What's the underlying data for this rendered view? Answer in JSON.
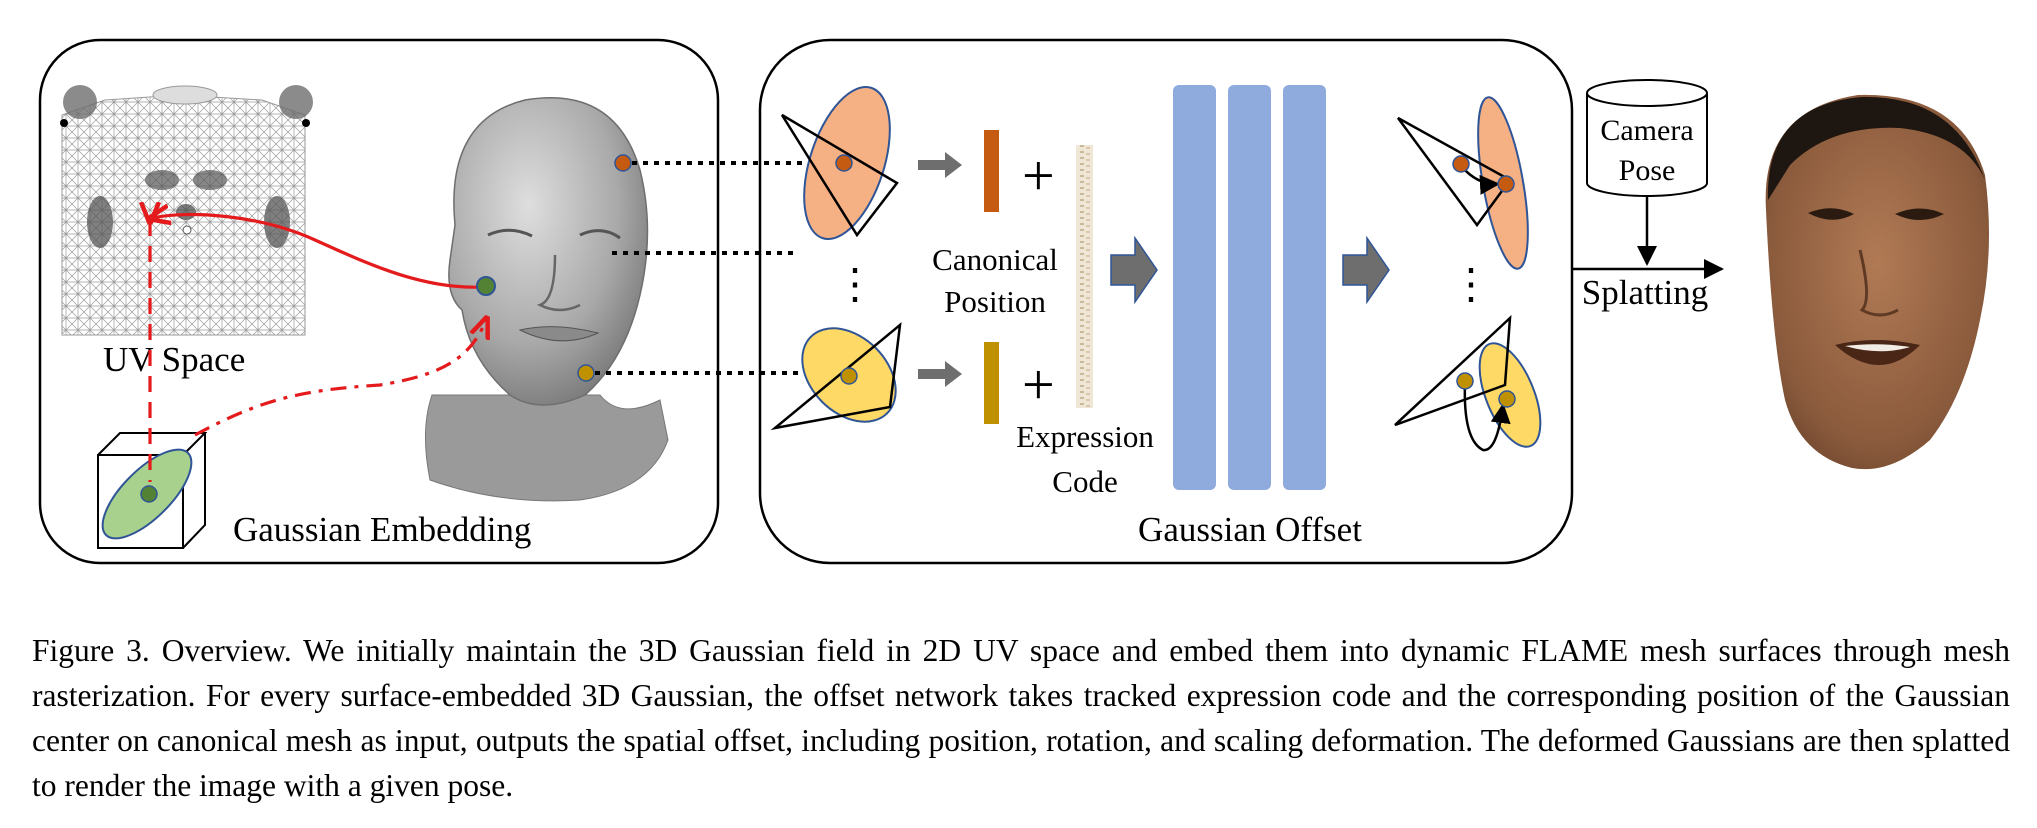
{
  "figure": {
    "uv_space_label": "UV Space",
    "gaussian_embedding_label": "Gaussian Embedding",
    "canonical_position_label": [
      "Canonical",
      "Position"
    ],
    "expression_code_label": [
      "Expression",
      "Code"
    ],
    "gaussian_offset_label": "Gaussian Offset",
    "camera_pose_label": [
      "Camera",
      "Pose"
    ],
    "splatting_label": "Splatting",
    "plus_sign": "+",
    "ellipsis": "⋮",
    "colors": {
      "orange_gaussian": "#f5b183",
      "yellow_gaussian": "#ffd966",
      "green_gaussian": "#a9d18e",
      "mlp_layer": "#8faadc",
      "canonical_bar_1": "#c55a11",
      "canonical_bar_2": "#bf9000",
      "red_arrow": "#e41a1c",
      "gray_arrow": "#6e6e6e",
      "outline_blue": "#2f5597"
    }
  },
  "caption": {
    "figure_number": "Figure 3.",
    "text": "Overview. We initially maintain the 3D Gaussian field in 2D UV space and embed them into dynamic FLAME mesh surfaces through mesh rasterization. For every surface-embedded 3D Gaussian, the offset network takes tracked expression code and the corresponding position of the Gaussian center on canonical mesh as input, outputs the spatial offset, including position, rotation, and scaling deformation. The deformed Gaussians are then splatted to render the image with a given pose."
  }
}
